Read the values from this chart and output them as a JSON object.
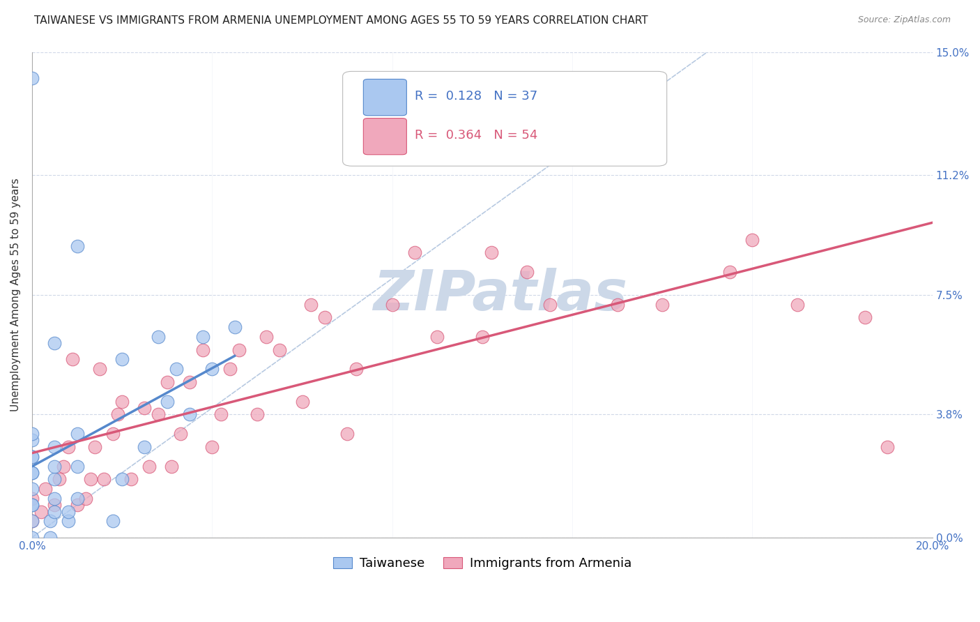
{
  "title": "TAIWANESE VS IMMIGRANTS FROM ARMENIA UNEMPLOYMENT AMONG AGES 55 TO 59 YEARS CORRELATION CHART",
  "source": "Source: ZipAtlas.com",
  "ylabel": "Unemployment Among Ages 55 to 59 years",
  "xlim": [
    0.0,
    0.2
  ],
  "ylim": [
    0.0,
    0.15
  ],
  "ytick_labels": [
    "0.0%",
    "3.8%",
    "7.5%",
    "11.2%",
    "15.0%"
  ],
  "ytick_values": [
    0.0,
    0.038,
    0.075,
    0.112,
    0.15
  ],
  "xtick_values": [
    0.0,
    0.04,
    0.08,
    0.12,
    0.16,
    0.2
  ],
  "xtick_labels": [
    "0.0%",
    "",
    "",
    "",
    "",
    "20.0%"
  ],
  "taiwanese_R": 0.128,
  "taiwanese_N": 37,
  "armenia_R": 0.364,
  "armenia_N": 54,
  "taiwanese_color": "#aac8f0",
  "armenia_color": "#f0a8bc",
  "taiwanese_line_color": "#5588cc",
  "armenia_line_color": "#d85878",
  "diagonal_color": "#b0c4de",
  "watermark": "ZIPatlas",
  "watermark_color": "#ccd8e8",
  "taiwanese_x": [
    0.0,
    0.0,
    0.0,
    0.0,
    0.0,
    0.0,
    0.0,
    0.0,
    0.0,
    0.0,
    0.0,
    0.0,
    0.004,
    0.004,
    0.005,
    0.005,
    0.005,
    0.005,
    0.005,
    0.005,
    0.008,
    0.008,
    0.01,
    0.01,
    0.01,
    0.01,
    0.018,
    0.02,
    0.02,
    0.025,
    0.028,
    0.03,
    0.032,
    0.035,
    0.038,
    0.04,
    0.045
  ],
  "taiwanese_y": [
    0.0,
    0.005,
    0.01,
    0.01,
    0.015,
    0.02,
    0.02,
    0.025,
    0.025,
    0.03,
    0.032,
    0.142,
    0.0,
    0.005,
    0.008,
    0.012,
    0.018,
    0.022,
    0.028,
    0.06,
    0.005,
    0.008,
    0.012,
    0.022,
    0.032,
    0.09,
    0.005,
    0.018,
    0.055,
    0.028,
    0.062,
    0.042,
    0.052,
    0.038,
    0.062,
    0.052,
    0.065
  ],
  "armenia_x": [
    0.0,
    0.0,
    0.002,
    0.003,
    0.005,
    0.006,
    0.007,
    0.008,
    0.009,
    0.01,
    0.012,
    0.013,
    0.014,
    0.015,
    0.016,
    0.018,
    0.019,
    0.02,
    0.022,
    0.025,
    0.026,
    0.028,
    0.03,
    0.031,
    0.033,
    0.035,
    0.038,
    0.04,
    0.042,
    0.044,
    0.046,
    0.05,
    0.052,
    0.055,
    0.06,
    0.062,
    0.065,
    0.07,
    0.072,
    0.08,
    0.085,
    0.09,
    0.1,
    0.102,
    0.105,
    0.11,
    0.115,
    0.13,
    0.14,
    0.155,
    0.16,
    0.17,
    0.185,
    0.19
  ],
  "armenia_y": [
    0.005,
    0.012,
    0.008,
    0.015,
    0.01,
    0.018,
    0.022,
    0.028,
    0.055,
    0.01,
    0.012,
    0.018,
    0.028,
    0.052,
    0.018,
    0.032,
    0.038,
    0.042,
    0.018,
    0.04,
    0.022,
    0.038,
    0.048,
    0.022,
    0.032,
    0.048,
    0.058,
    0.028,
    0.038,
    0.052,
    0.058,
    0.038,
    0.062,
    0.058,
    0.042,
    0.072,
    0.068,
    0.032,
    0.052,
    0.072,
    0.088,
    0.062,
    0.062,
    0.088,
    0.122,
    0.082,
    0.072,
    0.072,
    0.072,
    0.082,
    0.092,
    0.072,
    0.068,
    0.028
  ],
  "background_color": "#ffffff",
  "grid_color": "#d0d8e8",
  "title_fontsize": 11,
  "ylabel_fontsize": 11,
  "tick_fontsize": 11,
  "legend_fontsize": 13,
  "source_fontsize": 9
}
